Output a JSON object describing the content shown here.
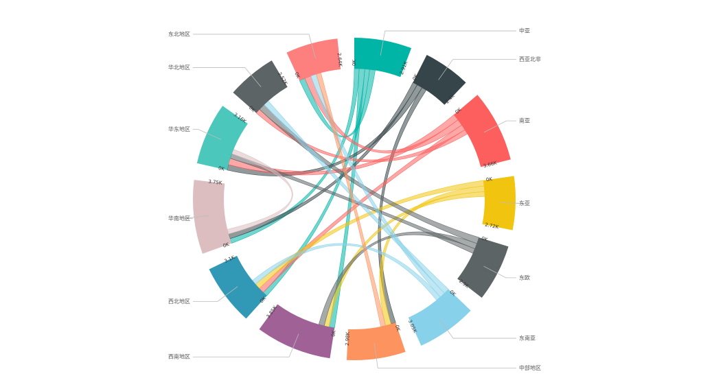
{
  "chart_data": {
    "type": "chord",
    "nodes": [
      {
        "name": "中亚",
        "value": 2.91,
        "color": "#00b5a5",
        "max_label": "2.91K"
      },
      {
        "name": "西亚北非",
        "value": 2.4,
        "color": "#364549",
        "max_label": "2.4K"
      },
      {
        "name": "南亚",
        "value": 3.66,
        "color": "#fd5f5e",
        "max_label": "3.66K"
      },
      {
        "name": "东亚",
        "value": 2.72,
        "color": "#f1c40f",
        "max_label": "2.72K"
      },
      {
        "name": "东欧",
        "value": 2.9,
        "color": "#5d6466",
        "max_label": "2.9K"
      },
      {
        "name": "东南亚",
        "value": 3.05,
        "color": "#88d1ea",
        "max_label": "3.05K"
      },
      {
        "name": "中部地区",
        "value": 2.98,
        "color": "#fd9460",
        "max_label": "2.98K"
      },
      {
        "name": "西南地区",
        "value": 3.85,
        "color": "#a06196",
        "max_label": "3.85K"
      },
      {
        "name": "西北地区",
        "value": 3.1,
        "color": "#3199b6",
        "max_label": "3.1K"
      },
      {
        "name": "华南地区",
        "value": 3.75,
        "color": "#dcbec0",
        "max_label": "3.75K"
      },
      {
        "name": "华东地区",
        "value": 3.16,
        "color": "#4bc7bb",
        "max_label": "3.16K"
      },
      {
        "name": "华北地区",
        "value": 2.52,
        "color": "#5d6466",
        "max_label": "2.52K"
      },
      {
        "name": "东北地区",
        "value": 2.64,
        "color": "#fd7f7e",
        "max_label": "2.64K"
      }
    ],
    "zero_label": "0K",
    "links": [
      {
        "source": "中亚",
        "target": "华南地区",
        "value": 0.3
      },
      {
        "source": "中亚",
        "target": "西南地区",
        "value": 0.35
      },
      {
        "source": "中亚",
        "target": "西北地区",
        "value": 0.3
      },
      {
        "source": "中亚",
        "target": "东北地区",
        "value": 0.35
      },
      {
        "source": "西亚北非",
        "target": "华南地区",
        "value": 0.3
      },
      {
        "source": "西亚北非",
        "target": "华东地区",
        "value": 0.35
      },
      {
        "source": "西亚北非",
        "target": "中部地区",
        "value": 0.3
      },
      {
        "source": "南亚",
        "target": "华东地区",
        "value": 0.4
      },
      {
        "source": "南亚",
        "target": "东北地区",
        "value": 0.4
      },
      {
        "source": "南亚",
        "target": "西北地区",
        "value": 0.35
      },
      {
        "source": "南亚",
        "target": "华北地区",
        "value": 0.3
      },
      {
        "source": "东亚",
        "target": "西北地区",
        "value": 0.35
      },
      {
        "source": "东亚",
        "target": "中部地区",
        "value": 0.35
      },
      {
        "source": "东亚",
        "target": "西南地区",
        "value": 0.3
      },
      {
        "source": "东欧",
        "target": "华北地区",
        "value": 0.4
      },
      {
        "source": "东欧",
        "target": "西南地区",
        "value": 0.35
      },
      {
        "source": "东欧",
        "target": "华东地区",
        "value": 0.3
      },
      {
        "source": "东南亚",
        "target": "华北地区",
        "value": 0.35
      },
      {
        "source": "东南亚",
        "target": "东北地区",
        "value": 0.35
      },
      {
        "source": "东南亚",
        "target": "西北地区",
        "value": 0.3
      },
      {
        "source": "中部地区",
        "target": "东北地区",
        "value": 0.3
      },
      {
        "source": "华南地区",
        "target": "华东地区",
        "value": 0.3
      }
    ]
  }
}
